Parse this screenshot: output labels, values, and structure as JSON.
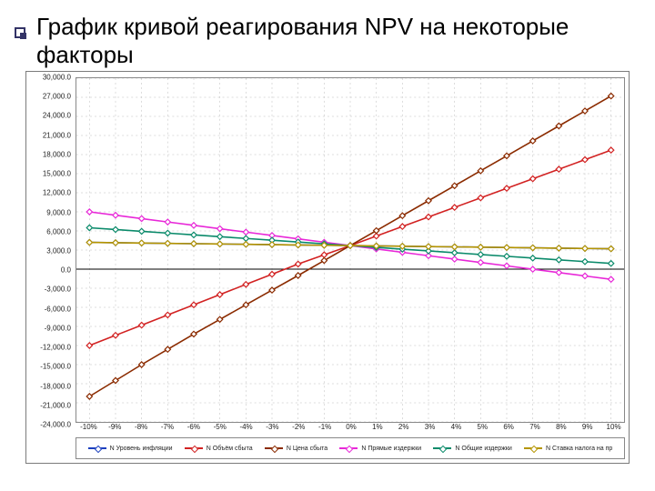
{
  "slide": {
    "title": "График кривой реагирования NPV на некоторые факторы",
    "bullet_color": "#333366"
  },
  "chart": {
    "type": "line",
    "background_color": "#ffffff",
    "border_color": "#888888",
    "grid_color": "#bbbbbb",
    "axis_color": "#000000",
    "tick_fontsize": 8,
    "x": {
      "min": -10.5,
      "max": 10.5,
      "step": 1,
      "ticks": [
        -10,
        -9,
        -8,
        -7,
        -6,
        -5,
        -4,
        -3,
        -2,
        -1,
        0,
        1,
        2,
        3,
        4,
        5,
        6,
        7,
        8,
        9,
        10
      ],
      "labels": [
        "-10%",
        "-9%",
        "-8%",
        "-7%",
        "-6%",
        "-5%",
        "-4%",
        "-3%",
        "-2%",
        "-1%",
        "0%",
        "1%",
        "2%",
        "3%",
        "4%",
        "5%",
        "6%",
        "7%",
        "8%",
        "9%",
        "10%"
      ]
    },
    "y": {
      "min": -2400000,
      "max": 3000000,
      "step": 300000,
      "ticks": [
        3000000,
        2700000,
        2400000,
        2100000,
        1800000,
        1500000,
        1200000,
        900000,
        600000,
        300000,
        0,
        -300000,
        -600000,
        -900000,
        -1200000,
        -1500000,
        -1800000,
        -2100000,
        -2400000
      ],
      "labels": [
        "30,000.0",
        "27,000.0",
        "24,000.0",
        "21,000.0",
        "18,000.0",
        "15,000.0",
        "12,000.0",
        "9,000.0",
        "6,000.0",
        "3,000.0",
        "0.0",
        "-3,000.0",
        "-6,000.0",
        "-9,000.0",
        "-12,000.0",
        "-15,000.0",
        "-18,000.0",
        "-21,000.0",
        "-24,000.0"
      ]
    },
    "series": [
      {
        "name": "N Уровень инфляции",
        "color": "#1b3fbf",
        "x": [
          -10,
          -9,
          -8,
          -7,
          -6,
          -5,
          -4,
          -3,
          -2,
          -1,
          0,
          1,
          2,
          3,
          4,
          5,
          6,
          7,
          8,
          9,
          10
        ],
        "y": [
          420000,
          415000,
          410000,
          405000,
          400000,
          395000,
          390000,
          385000,
          380000,
          375000,
          370000,
          365000,
          360000,
          355000,
          350000,
          345000,
          340000,
          335000,
          330000,
          325000,
          320000
        ]
      },
      {
        "name": "N Объём сбыта",
        "color": "#d22222",
        "x": [
          -10,
          -9,
          -8,
          -7,
          -6,
          -5,
          -4,
          -3,
          -2,
          -1,
          0,
          1,
          2,
          3,
          4,
          5,
          6,
          7,
          8,
          9,
          10
        ],
        "y": [
          -1200000,
          -1040000,
          -880000,
          -720000,
          -560000,
          -400000,
          -240000,
          -80000,
          80000,
          225000,
          370000,
          520000,
          670000,
          820000,
          970000,
          1120000,
          1270000,
          1420000,
          1570000,
          1720000,
          1870000
        ]
      },
      {
        "name": "N Цена сбыта",
        "color": "#8b2b00",
        "x": [
          -10,
          -9,
          -8,
          -7,
          -6,
          -5,
          -4,
          -3,
          -2,
          -1,
          0,
          1,
          2,
          3,
          4,
          5,
          6,
          7,
          8,
          9,
          10
        ],
        "y": [
          -2000000,
          -1750000,
          -1500000,
          -1260000,
          -1020000,
          -790000,
          -560000,
          -330000,
          -100000,
          135000,
          370000,
          605000,
          840000,
          1075000,
          1310000,
          1545000,
          1780000,
          2015000,
          2250000,
          2485000,
          2720000
        ]
      },
      {
        "name": "N Прямые издержки",
        "color": "#e828d8",
        "x": [
          -10,
          -9,
          -8,
          -7,
          -6,
          -5,
          -4,
          -3,
          -2,
          -1,
          0,
          1,
          2,
          3,
          4,
          5,
          6,
          7,
          8,
          9,
          10
        ],
        "y": [
          900000,
          847000,
          794000,
          741000,
          688000,
          635000,
          582000,
          529000,
          476000,
          423000,
          370000,
          317000,
          264000,
          211000,
          158000,
          105000,
          52000,
          -1000,
          -54000,
          -107000,
          -160000
        ]
      },
      {
        "name": "N Общие издержки",
        "color": "#0a8a6a",
        "x": [
          -10,
          -9,
          -8,
          -7,
          -6,
          -5,
          -4,
          -3,
          -2,
          -1,
          0,
          1,
          2,
          3,
          4,
          5,
          6,
          7,
          8,
          9,
          10
        ],
        "y": [
          650000,
          622000,
          594000,
          566000,
          538000,
          510000,
          482000,
          454000,
          426000,
          398000,
          370000,
          342000,
          314000,
          286000,
          258000,
          230000,
          202000,
          174000,
          146000,
          118000,
          90000
        ]
      },
      {
        "name": "N Ставка налога на пр",
        "color": "#b59500",
        "x": [
          -10,
          -9,
          -8,
          -7,
          -6,
          -5,
          -4,
          -3,
          -2,
          -1,
          0,
          1,
          2,
          3,
          4,
          5,
          6,
          7,
          8,
          9,
          10
        ],
        "y": [
          420000,
          415000,
          410000,
          405000,
          400000,
          395000,
          390000,
          385000,
          380000,
          375000,
          370000,
          365000,
          360000,
          355000,
          350000,
          345000,
          340000,
          335000,
          330000,
          325000,
          320000
        ]
      }
    ],
    "legend_fontsize": 7
  }
}
